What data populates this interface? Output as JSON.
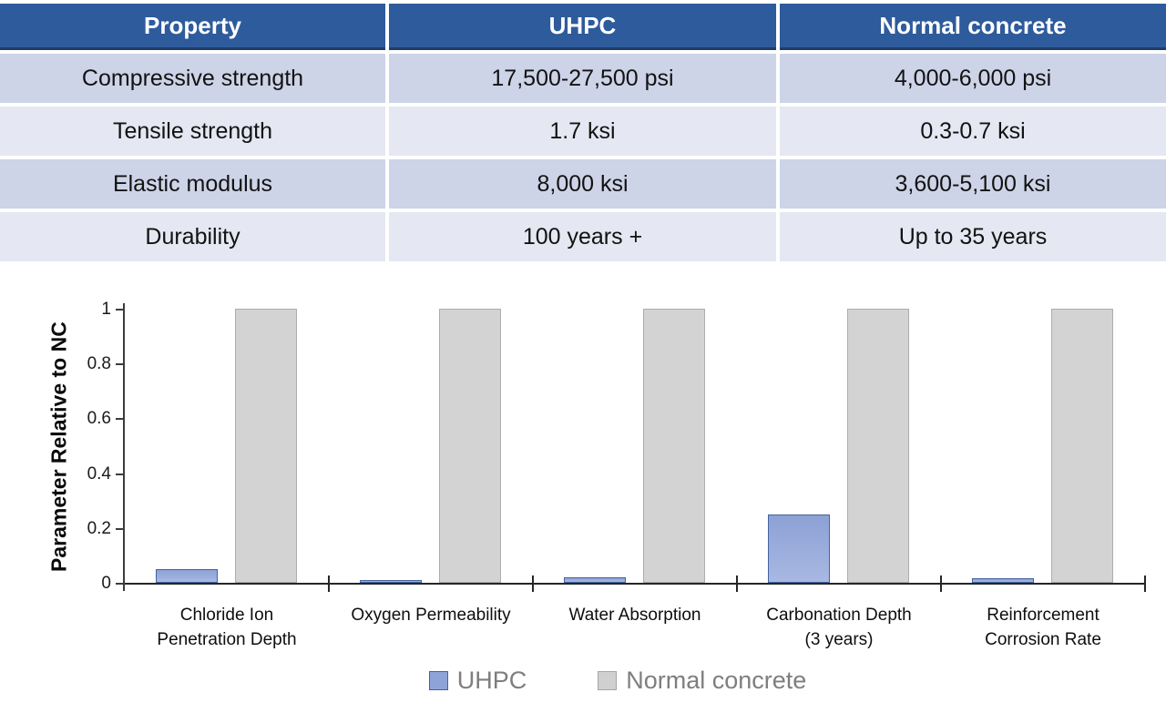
{
  "table": {
    "headers": [
      "Property",
      "UHPC",
      "Normal concrete"
    ],
    "rows": [
      [
        "Compressive strength",
        "17,500-27,500 psi",
        "4,000-6,000 psi"
      ],
      [
        "Tensile strength",
        "1.7 ksi",
        "0.3-0.7 ksi"
      ],
      [
        "Elastic modulus",
        "8,000 ksi",
        "3,600-5,100 ksi"
      ],
      [
        "Durability",
        "100 years +",
        "Up to 35 years"
      ]
    ]
  },
  "chart_data": {
    "type": "bar",
    "title": "",
    "xlabel": "",
    "ylabel": "Parameter Relative to NC",
    "ylim": [
      0,
      1
    ],
    "grid": false,
    "legend_position": "bottom",
    "yticks": [
      {
        "label": "0",
        "value": 0
      },
      {
        "label": "0.2",
        "value": 0.2
      },
      {
        "label": "0.4",
        "value": 0.4
      },
      {
        "label": "0.6",
        "value": 0.6
      },
      {
        "label": "0.8",
        "value": 0.8
      },
      {
        "label": "1",
        "value": 1
      }
    ],
    "categories": [
      "Chloride Ion Penetration Depth",
      "Oxygen Permeability",
      "Water Absorption",
      "Carbonation Depth (3 years)",
      "Reinforcement Corrosion Rate"
    ],
    "category_lines": [
      [
        "Chloride Ion",
        "Penetration Depth"
      ],
      [
        "Oxygen Permeability"
      ],
      [
        "Water Absorption"
      ],
      [
        "Carbonation Depth",
        "(3 years)"
      ],
      [
        "Reinforcement",
        "Corrosion Rate"
      ]
    ],
    "series": [
      {
        "name": "UHPC",
        "color": "#8EA4D8",
        "values": [
          0.05,
          0.01,
          0.02,
          0.25,
          0.015
        ]
      },
      {
        "name": "Normal concrete",
        "color": "#D3D3D3",
        "values": [
          1,
          1,
          1,
          1,
          1
        ]
      }
    ]
  },
  "colors": {
    "header_bg": "#2E5B9B",
    "header_text": "#FFFFFF",
    "header_border": "#203D6B",
    "row_dark": "#CDD4E8",
    "row_light": "#E5E7F2",
    "uhpc_bar": "#8EA4D8",
    "uhpc_bar_border": "#44639F",
    "nc_bar": "#D3D3D3",
    "nc_bar_border": "#ADADAD",
    "legend_text": "#7E7E7E",
    "axis": "#262626"
  }
}
